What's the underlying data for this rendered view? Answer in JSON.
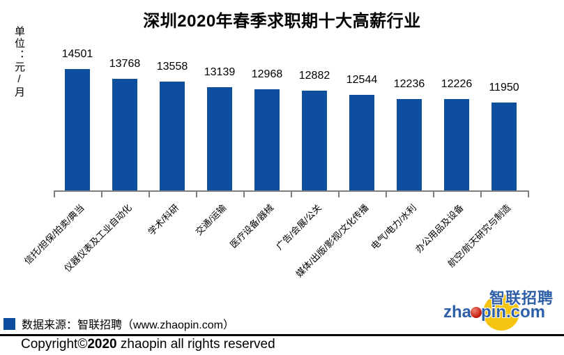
{
  "title": "深圳2020年春季求职期十大高薪行业",
  "unit_label": "单位：元/月",
  "chart_data": {
    "type": "bar",
    "title": "深圳2020年春季求职期十大高薪行业",
    "ylabel": "单位：元/月",
    "categories": [
      "信托/担保/拍卖/典当",
      "仪器仪表及工业自动化",
      "学术/科研",
      "交通/运输",
      "医疗设备/器械",
      "广告/会展/公关",
      "媒体/出版/影视/文化传播",
      "电气/电力/水利",
      "办公用品及设备",
      "航空/航天研究与制造"
    ],
    "values": [
      14501,
      13768,
      13558,
      13139,
      12968,
      12882,
      12544,
      12236,
      12226,
      11950
    ],
    "value_labels_shown": true,
    "ylim": [
      5400,
      15000
    ],
    "y_axis_labels_shown": false,
    "grid": false,
    "legend_position": "bottom-left",
    "bar_color": "#0d4e9e",
    "axis_color": "#7f7f7f"
  },
  "legend": {
    "swatch_color": "#0d4e9e",
    "source_label": "数据来源：智联招聘（www.zhaopin.com）"
  },
  "footer": {
    "copyright_prefix": "Copyright©",
    "copyright_year": "2020",
    "copyright_suffix": " zhaopin all rights reserved"
  },
  "logo": {
    "cn_text": "智联招聘",
    "en_left": "zha",
    "en_right": "pin.com",
    "circle_color": "#f5c411",
    "text_color": "#2e5fa8",
    "dot_color": "#c2170d",
    "dot_highlight": "#ef8272"
  }
}
